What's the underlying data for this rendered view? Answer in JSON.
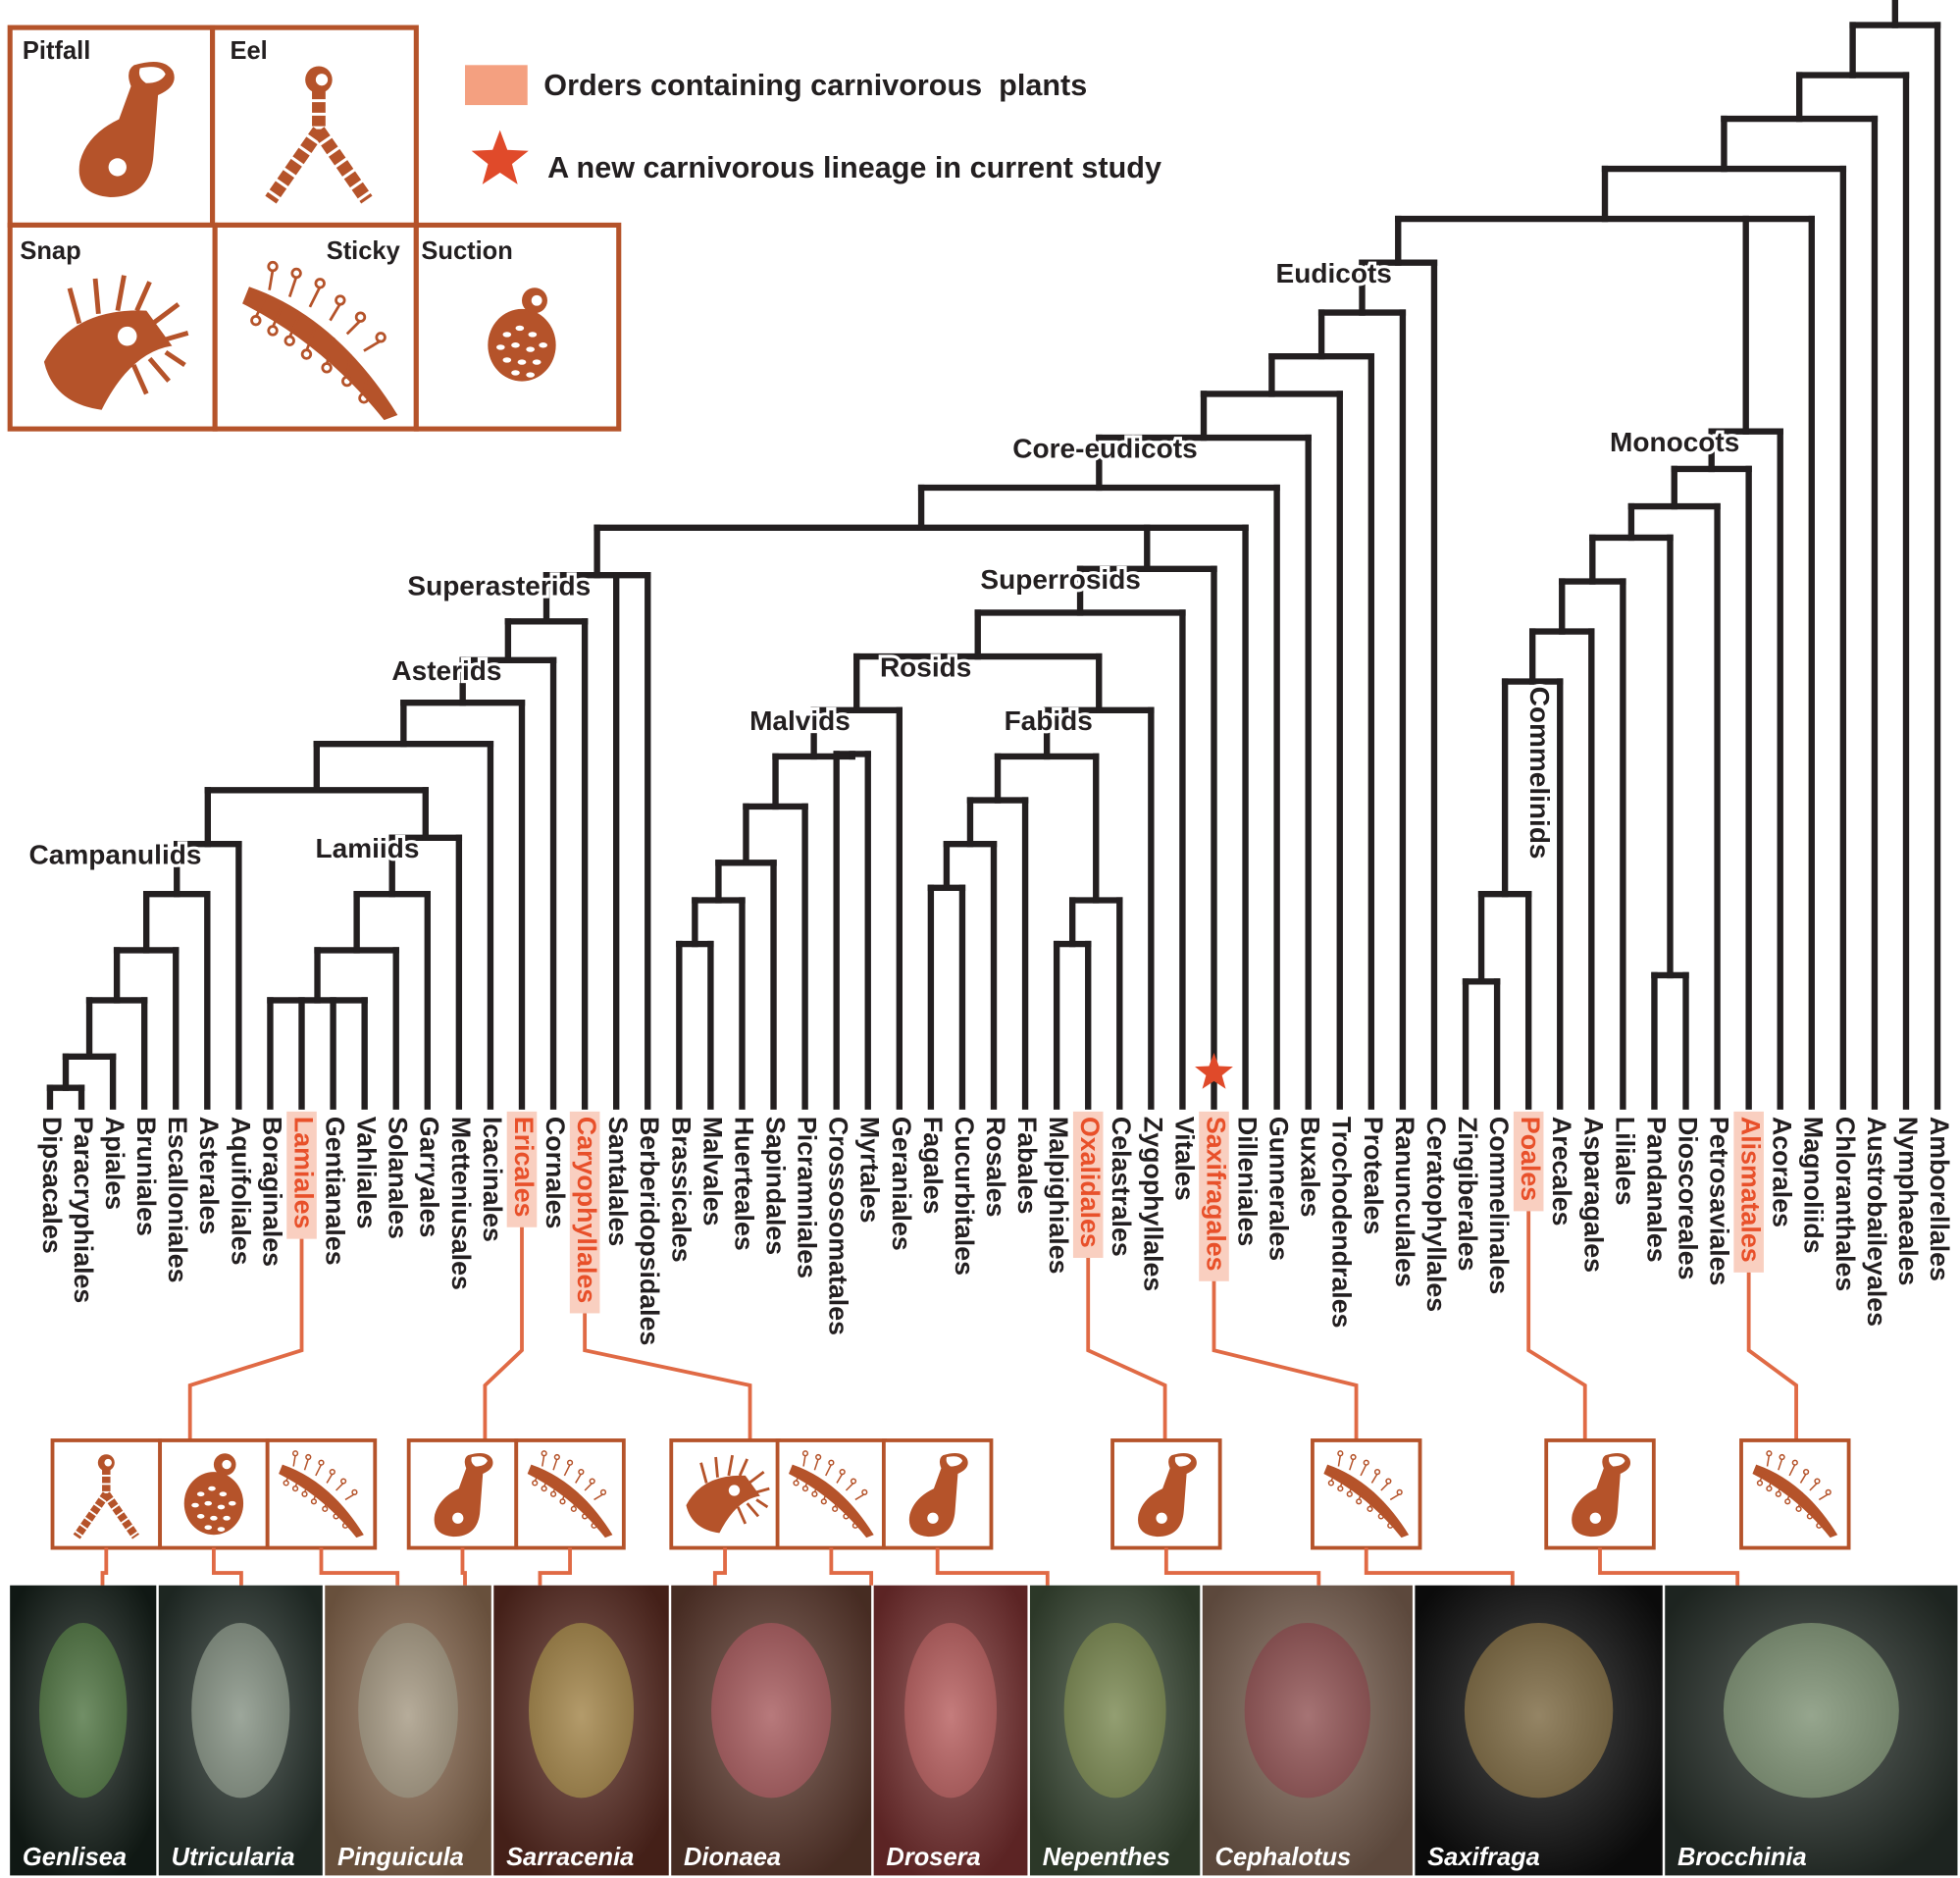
{
  "legend": {
    "carnivorous": "Orders containing carnivorous  plants",
    "new_lineage": "A new carnivorous lineage in current study"
  },
  "trap_types": [
    "Pitfall",
    "Eel",
    "Snap",
    "Sticky",
    "Suction"
  ],
  "clades": [
    "Eudicots",
    "Monocots",
    "Core-eudicots",
    "Superasterids",
    "Superrosids",
    "Rosids",
    "Asterids",
    "Malvids",
    "Fabids",
    "Campanulids",
    "Lamiids",
    "Commelinids"
  ],
  "orders": [
    {
      "label": "Dipsacales"
    },
    {
      "label": "Paracryphiales"
    },
    {
      "label": "Apiales"
    },
    {
      "label": "Bruniales"
    },
    {
      "label": "Escalloniales"
    },
    {
      "label": "Asterales"
    },
    {
      "label": "Aquifoliales"
    },
    {
      "label": "Boraginales"
    },
    {
      "label": "Lamiales",
      "carnivorous": true
    },
    {
      "label": "Gentianales"
    },
    {
      "label": "Vahliales"
    },
    {
      "label": "Solanales"
    },
    {
      "label": "Garryales"
    },
    {
      "label": "Metteniusales"
    },
    {
      "label": "Icacinales"
    },
    {
      "label": "Ericales",
      "carnivorous": true
    },
    {
      "label": "Cornales"
    },
    {
      "label": "Caryophyllales",
      "carnivorous": true
    },
    {
      "label": "Santalales"
    },
    {
      "label": "Berberidopsidales"
    },
    {
      "label": "Brassicales"
    },
    {
      "label": "Malvales"
    },
    {
      "label": "Huerteales"
    },
    {
      "label": "Sapindales"
    },
    {
      "label": "Picramniales"
    },
    {
      "label": "Crossosomatales"
    },
    {
      "label": "Myrtales"
    },
    {
      "label": "Geraniales"
    },
    {
      "label": "Fagales"
    },
    {
      "label": "Cucurbitales"
    },
    {
      "label": "Rosales"
    },
    {
      "label": "Fabales"
    },
    {
      "label": "Malpighiales"
    },
    {
      "label": "Oxalidales",
      "carnivorous": true
    },
    {
      "label": "Celastrales"
    },
    {
      "label": "Zygophyllales"
    },
    {
      "label": "Vitales"
    },
    {
      "label": "Saxifragales",
      "carnivorous": true,
      "new_lineage": true
    },
    {
      "label": "Dilleniales"
    },
    {
      "label": "Gunnerales"
    },
    {
      "label": "Buxales"
    },
    {
      "label": "Trochodendrales"
    },
    {
      "label": "Proteales"
    },
    {
      "label": "Ranunculales"
    },
    {
      "label": "Ceratophyllales"
    },
    {
      "label": "Zingiberales"
    },
    {
      "label": "Commelinales"
    },
    {
      "label": "Poales",
      "carnivorous": true
    },
    {
      "label": "Arecales"
    },
    {
      "label": "Asparagales"
    },
    {
      "label": "Liliales"
    },
    {
      "label": "Pandanales"
    },
    {
      "label": "Dioscoreales"
    },
    {
      "label": "Petrosaviales"
    },
    {
      "label": "Alismatales",
      "carnivorous": true
    },
    {
      "label": "Acorales"
    },
    {
      "label": "Magnoliids"
    },
    {
      "label": "Chloranthales"
    },
    {
      "label": "Austrobaileyales"
    },
    {
      "label": "Nymphaeales"
    },
    {
      "label": "Amborellales"
    }
  ],
  "photos": [
    "Genlisea",
    "Utricularia",
    "Pinguicula",
    "Sarracenia",
    "Dionaea",
    "Drosera",
    "Nepenthes",
    "Cephalotus",
    "Saxifraga",
    "Brocchinia"
  ]
}
